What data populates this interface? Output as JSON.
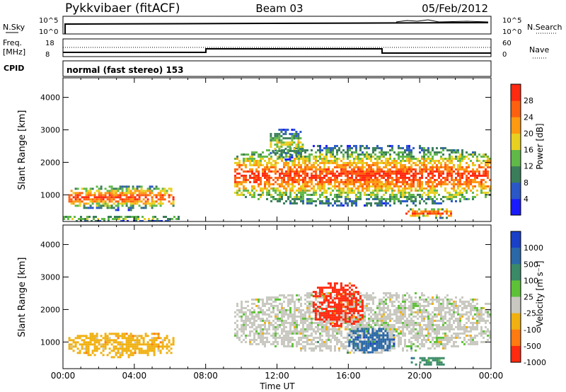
{
  "header": {
    "station": "Pykkvibaer (fitACF)",
    "beam": "Beam 03",
    "date": "05/Feb/2012"
  },
  "noise_panel": {
    "label": "N.Sky",
    "right_label": "N.Search",
    "left_ticks": [
      "10^5",
      "10^0"
    ],
    "right_ticks": [
      "10^5",
      "10^0"
    ]
  },
  "freq_panel": {
    "label_line1": "Freq.",
    "label_line2": "[MHz]",
    "right_label": "Nave",
    "left_ticks": [
      "18",
      "8"
    ],
    "right_ticks": [
      "60",
      "0"
    ]
  },
  "cpid_panel": {
    "label": "CPID",
    "text": "normal (fast stereo) 153"
  },
  "chart_data": [
    {
      "type": "heatmap",
      "name": "Power",
      "ylabel": "Slant Range [km]",
      "ylim": [
        180,
        4600
      ],
      "yticks": [
        "1000",
        "2000",
        "3000",
        "4000"
      ],
      "xlabel": "Time UT",
      "xticks": [
        "00:00",
        "04:00",
        "08:00",
        "12:00",
        "16:00",
        "20:00",
        "00:00"
      ],
      "colorbar": {
        "label": "Power [dB]",
        "ticks": [
          "4",
          "8",
          "12",
          "16",
          "20",
          "24",
          "28"
        ],
        "colors": [
          "#1a1aff",
          "#2a58c8",
          "#3a7d5a",
          "#60b848",
          "#e8d020",
          "#ff9a10",
          "#ff6010",
          "#ff2a10"
        ]
      },
      "echo_regions": [
        {
          "t0": 0.3,
          "t1": 6.2,
          "r0": 560,
          "r1": 1350,
          "peak_db": 26
        },
        {
          "t0": 0.0,
          "t1": 6.5,
          "r0": 200,
          "r1": 420,
          "peak_db": 14
        },
        {
          "t0": 9.6,
          "t1": 24.0,
          "r0": 650,
          "r1": 2600,
          "peak_db": 30
        },
        {
          "t0": 19.2,
          "t1": 21.8,
          "r0": 280,
          "r1": 650,
          "peak_db": 30
        },
        {
          "t0": 11.6,
          "t1": 13.4,
          "r0": 2100,
          "r1": 3100,
          "peak_db": 16
        }
      ]
    },
    {
      "type": "heatmap",
      "name": "Velocity",
      "ylabel": "Slant Range [km]",
      "ylim": [
        180,
        4600
      ],
      "yticks": [
        "1000",
        "2000",
        "3000",
        "4000"
      ],
      "xlabel": "Time UT",
      "xticks": [
        "00:00",
        "04:00",
        "08:00",
        "12:00",
        "16:00",
        "20:00",
        "00:00"
      ],
      "colorbar": {
        "label": "Velocity [m s⁻¹]",
        "ticks": [
          "1000",
          "500",
          "100",
          "25",
          "-25",
          "-100",
          "-500",
          "-1000"
        ],
        "colors": [
          "#1a40c8",
          "#2a68a8",
          "#3a8a68",
          "#5ec238",
          "#c8c8c0",
          "#f0b010",
          "#ff7a10",
          "#ff2a10"
        ]
      },
      "echo_regions": [
        {
          "t0": 0.3,
          "t1": 6.2,
          "r0": 560,
          "r1": 1350,
          "typical_velocity": -25
        },
        {
          "t0": 9.6,
          "t1": 24.0,
          "r0": 700,
          "r1": 2600,
          "typical_velocity": 0
        },
        {
          "t0": 14.0,
          "t1": 16.8,
          "r0": 1500,
          "r1": 2900,
          "typical_velocity": -500
        },
        {
          "t0": 16.0,
          "t1": 18.5,
          "r0": 700,
          "r1": 1500,
          "typical_velocity": 500
        },
        {
          "t0": 19.5,
          "t1": 21.5,
          "r0": 300,
          "r1": 600,
          "typical_velocity": 100
        }
      ]
    }
  ]
}
